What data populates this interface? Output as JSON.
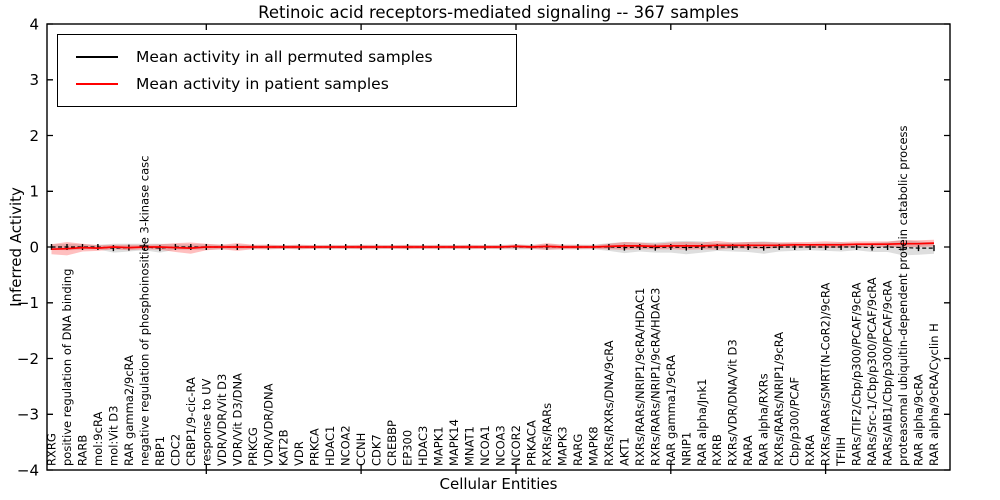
{
  "chart_data": {
    "type": "line",
    "title": "Retinoic acid receptors-mediated signaling -- 367 samples",
    "xlabel": "Cellular Entities",
    "ylabel": "Inferred Activity",
    "ylim": [
      -4,
      4
    ],
    "yticks": [
      4,
      3,
      2,
      1,
      0,
      -1,
      -2,
      -3,
      -4
    ],
    "ytick_labels": [
      "4",
      "3",
      "2",
      "1",
      "0",
      "−1",
      "−2",
      "−3",
      "−4"
    ],
    "x_major_tick_indices": [
      10,
      20,
      30,
      40,
      50
    ],
    "grid": false,
    "legend_position": "upper left",
    "legend": [
      {
        "label": "Mean activity in all permuted samples",
        "color": "#000000"
      },
      {
        "label": "Mean activity in patient samples",
        "color": "#ff0000"
      }
    ],
    "categories": [
      "RXRG",
      "positive regulation of DNA binding",
      "RARB",
      "mol:9cRA",
      "mol:Vit D3",
      "RAR gamma2/9cRA",
      "negative regulation of phosphoinositide 3-kinase casc",
      "RBP1",
      "CDC2",
      "CRBP1/9-cic-RA",
      "response to UV",
      "VDR/VDR/Vit D3",
      "VDR/Vit D3/DNA",
      "PRKCG",
      "VDR/VDR/DNA",
      "KAT2B",
      "VDR",
      "PRKCA",
      "HDAC1",
      "NCOA2",
      "CCNH",
      "CDK7",
      "CREBBP",
      "EP300",
      "HDAC3",
      "MAPK1",
      "MAPK14",
      "MNAT1",
      "NCOA1",
      "NCOA3",
      "NCOR2",
      "PRKACA",
      "RXRs/RARs",
      "MAPK3",
      "RARG",
      "MAPK8",
      "RXRs/RXRs/DNA/9cRA",
      "AKT1",
      "RXRs/RARs/NRIP1/9cRA/HDAC1",
      "RXRs/RARs/NRIP1/9cRA/HDAC3",
      "RAR gamma1/9cRA",
      "NRIP1",
      "RAR alpha/Jnk1",
      "RXRB",
      "RXRs/VDR/DNA/Vit D3",
      "RARA",
      "RAR alpha/RXRs",
      "RXRs/RARs/NRIP1/9cRA",
      "Cbp/p300/PCAF",
      "RXRA",
      "RXRs/RARs/SMRT(N-CoR2)/9cRA",
      "TFIIH",
      "RARs/TIF2/Cbp/p300/PCAF/9cRA",
      "RARs/Src-1/Cbp/p300/PCAF/9cRA",
      "RARs/AIB1/Cbp/p300/PCAF/9cRA",
      "proteasomal ubiquitin-dependent protein catabolic process",
      "RAR alpha/9cRA",
      "RAR alpha/9cRA/Cyclin H"
    ],
    "series": [
      {
        "name": "Mean activity in all permuted samples",
        "color": "#000000",
        "line_style": "dashed",
        "marker": "tick",
        "band_color": "#999999",
        "band_opacity": 0.32,
        "values": [
          0,
          0,
          0,
          0,
          -0.02,
          -0.01,
          0,
          -0.02,
          0,
          0,
          0,
          0,
          0,
          0,
          0,
          0,
          0,
          0,
          0,
          0,
          0,
          0,
          0,
          0,
          0,
          0,
          0,
          0,
          0,
          0,
          0,
          0,
          0,
          0,
          0,
          0,
          0,
          -0.01,
          0,
          -0.01,
          0,
          -0.01,
          0,
          0,
          0,
          0,
          -0.01,
          0,
          0,
          0,
          0,
          0,
          0,
          -0.01,
          0,
          -0.01,
          -0.02,
          -0.02
        ],
        "band_halfwidth": [
          0.05,
          0.06,
          0.05,
          0.04,
          0.08,
          0.07,
          0.06,
          0.08,
          0.05,
          0.05,
          0.05,
          0.04,
          0.04,
          0.035,
          0.04,
          0.035,
          0.04,
          0.035,
          0.04,
          0.035,
          0.04,
          0.04,
          0.035,
          0.04,
          0.035,
          0.04,
          0.035,
          0.04,
          0.035,
          0.04,
          0.045,
          0.04,
          0.05,
          0.04,
          0.045,
          0.04,
          0.07,
          0.1,
          0.08,
          0.09,
          0.1,
          0.12,
          0.1,
          0.07,
          0.08,
          0.09,
          0.11,
          0.08,
          0.07,
          0.06,
          0.07,
          0.08,
          0.06,
          0.08,
          0.09,
          0.14,
          0.12,
          0.1
        ]
      },
      {
        "name": "Mean activity in patient samples",
        "color": "#ff0000",
        "line_style": "solid",
        "marker": "none",
        "band_color": "#ff0000",
        "band_opacity": 0.25,
        "values": [
          -0.04,
          -0.03,
          -0.01,
          -0.02,
          0,
          -0.01,
          0,
          0,
          -0.01,
          -0.02,
          0,
          0,
          0,
          0,
          0,
          0,
          0,
          0,
          0,
          0,
          0,
          0,
          0,
          0,
          0,
          0,
          0,
          0,
          0,
          0,
          0.01,
          0,
          0.01,
          0,
          0,
          0,
          0.01,
          0.02,
          0.02,
          0.01,
          0.02,
          0.02,
          0.02,
          0.03,
          0.03,
          0.03,
          0.03,
          0.03,
          0.04,
          0.04,
          0.04,
          0.04,
          0.05,
          0.05,
          0.05,
          0.06,
          0.06,
          0.07
        ],
        "band_halfwidth": [
          0.09,
          0.12,
          0.07,
          0.05,
          0.04,
          0.05,
          0.04,
          0.05,
          0.08,
          0.1,
          0.06,
          0.04,
          0.07,
          0.04,
          0.04,
          0.03,
          0.04,
          0.03,
          0.03,
          0.03,
          0.035,
          0.03,
          0.03,
          0.035,
          0.03,
          0.03,
          0.03,
          0.035,
          0.03,
          0.03,
          0.035,
          0.03,
          0.06,
          0.04,
          0.035,
          0.03,
          0.05,
          0.07,
          0.06,
          0.05,
          0.06,
          0.07,
          0.06,
          0.08,
          0.05,
          0.06,
          0.06,
          0.05,
          0.05,
          0.05,
          0.06,
          0.05,
          0.05,
          0.05,
          0.05,
          0.06,
          0.06,
          0.06
        ]
      }
    ]
  }
}
